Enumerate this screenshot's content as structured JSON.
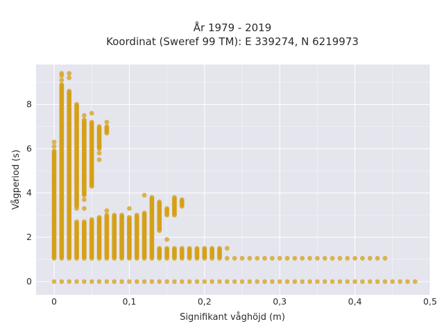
{
  "chart_data": {
    "type": "scatter",
    "title_line1": "År 1979 - 2019",
    "title_line2": "Koordinat (Sweref 99 TM): E 339274, N 6219973",
    "xlabel": "Signifikant våghöjd (m)",
    "ylabel": "Vågperiod (s)",
    "xlim": [
      -0.024,
      0.5
    ],
    "ylim": [
      -0.6,
      9.8
    ],
    "x_ticks": [
      0,
      0.1,
      0.2,
      0.3,
      0.4,
      0.5
    ],
    "x_tick_labels": [
      "0",
      "0,1",
      "0,2",
      "0,3",
      "0,4",
      "0,5"
    ],
    "y_ticks": [
      0,
      2,
      4,
      6,
      8
    ],
    "y_tick_labels": [
      "0",
      "2",
      "4",
      "6",
      "8"
    ],
    "grid": true,
    "colors": {
      "marker": "#d4a017",
      "plot_bg": "#e5e5ee",
      "grid": "#ffffff"
    },
    "columns": [
      {
        "x": 0.0,
        "ranges": [
          [
            1.05,
            5.9
          ]
        ],
        "extra": [
          6.1,
          6.3,
          0
        ]
      },
      {
        "x": 0.01,
        "ranges": [
          [
            1.05,
            8.9
          ]
        ],
        "extra": [
          9.1,
          9.3,
          9.4,
          0
        ]
      },
      {
        "x": 0.02,
        "ranges": [
          [
            1.05,
            8.6
          ]
        ],
        "extra": [
          9.2,
          9.4,
          0
        ]
      },
      {
        "x": 0.03,
        "ranges": [
          [
            1.05,
            2.7
          ],
          [
            3.4,
            8.0
          ]
        ],
        "extra": [
          3.3,
          0
        ]
      },
      {
        "x": 0.04,
        "ranges": [
          [
            1.05,
            2.7
          ],
          [
            3.9,
            7.3
          ]
        ],
        "extra": [
          3.3,
          3.7,
          7.5,
          0
        ]
      },
      {
        "x": 0.05,
        "ranges": [
          [
            1.05,
            2.8
          ],
          [
            4.3,
            7.2
          ]
        ],
        "extra": [
          7.6,
          0
        ]
      },
      {
        "x": 0.06,
        "ranges": [
          [
            1.05,
            2.9
          ],
          [
            6.0,
            7.0
          ]
        ],
        "extra": [
          5.5,
          5.8,
          0
        ]
      },
      {
        "x": 0.07,
        "ranges": [
          [
            1.05,
            3.0
          ],
          [
            6.7,
            7.0
          ]
        ],
        "extra": [
          3.2,
          7.2,
          0
        ]
      },
      {
        "x": 0.08,
        "ranges": [
          [
            1.05,
            3.0
          ]
        ],
        "extra": [
          0
        ]
      },
      {
        "x": 0.09,
        "ranges": [
          [
            1.05,
            3.0
          ]
        ],
        "extra": [
          0
        ]
      },
      {
        "x": 0.1,
        "ranges": [
          [
            1.05,
            2.9
          ]
        ],
        "extra": [
          3.3,
          0
        ]
      },
      {
        "x": 0.11,
        "ranges": [
          [
            1.05,
            3.0
          ]
        ],
        "extra": [
          0
        ]
      },
      {
        "x": 0.12,
        "ranges": [
          [
            1.05,
            3.1
          ]
        ],
        "extra": [
          3.9,
          0
        ]
      },
      {
        "x": 0.13,
        "ranges": [
          [
            1.05,
            3.8
          ]
        ],
        "extra": [
          0
        ]
      },
      {
        "x": 0.14,
        "ranges": [
          [
            1.05,
            1.5
          ],
          [
            2.3,
            3.6
          ]
        ],
        "extra": [
          0
        ]
      },
      {
        "x": 0.15,
        "ranges": [
          [
            1.05,
            1.5
          ],
          [
            3.0,
            3.3
          ]
        ],
        "extra": [
          1.9,
          0
        ]
      },
      {
        "x": 0.16,
        "ranges": [
          [
            1.05,
            1.5
          ],
          [
            3.0,
            3.8
          ]
        ],
        "extra": [
          0
        ]
      },
      {
        "x": 0.17,
        "ranges": [
          [
            1.05,
            1.5
          ],
          [
            3.4,
            3.7
          ]
        ],
        "extra": [
          0
        ]
      },
      {
        "x": 0.18,
        "ranges": [
          [
            1.05,
            1.5
          ]
        ],
        "extra": [
          0
        ]
      },
      {
        "x": 0.19,
        "ranges": [
          [
            1.05,
            1.5
          ]
        ],
        "extra": [
          0
        ]
      },
      {
        "x": 0.2,
        "ranges": [
          [
            1.05,
            1.5
          ]
        ],
        "extra": [
          0
        ]
      },
      {
        "x": 0.21,
        "ranges": [
          [
            1.05,
            1.5
          ]
        ],
        "extra": [
          0
        ]
      },
      {
        "x": 0.22,
        "ranges": [
          [
            1.05,
            1.5
          ]
        ],
        "extra": [
          0
        ]
      },
      {
        "x": 0.23,
        "ranges": [],
        "extra": [
          1.05,
          1.5,
          0
        ]
      },
      {
        "x": 0.24,
        "ranges": [],
        "extra": [
          1.05,
          0
        ]
      },
      {
        "x": 0.25,
        "ranges": [],
        "extra": [
          1.05,
          0
        ]
      },
      {
        "x": 0.26,
        "ranges": [],
        "extra": [
          1.05,
          0
        ]
      },
      {
        "x": 0.27,
        "ranges": [],
        "extra": [
          1.05,
          0
        ]
      },
      {
        "x": 0.28,
        "ranges": [],
        "extra": [
          1.05,
          0
        ]
      },
      {
        "x": 0.29,
        "ranges": [],
        "extra": [
          1.05,
          0
        ]
      },
      {
        "x": 0.3,
        "ranges": [],
        "extra": [
          1.05,
          0
        ]
      },
      {
        "x": 0.31,
        "ranges": [],
        "extra": [
          1.05,
          0
        ]
      },
      {
        "x": 0.32,
        "ranges": [],
        "extra": [
          1.05,
          0
        ]
      },
      {
        "x": 0.33,
        "ranges": [],
        "extra": [
          1.05,
          0
        ]
      },
      {
        "x": 0.34,
        "ranges": [],
        "extra": [
          1.05,
          0
        ]
      },
      {
        "x": 0.35,
        "ranges": [],
        "extra": [
          1.05,
          0
        ]
      },
      {
        "x": 0.36,
        "ranges": [],
        "extra": [
          1.05,
          0
        ]
      },
      {
        "x": 0.37,
        "ranges": [],
        "extra": [
          1.05,
          0
        ]
      },
      {
        "x": 0.38,
        "ranges": [],
        "extra": [
          1.05,
          0
        ]
      },
      {
        "x": 0.39,
        "ranges": [],
        "extra": [
          1.05,
          0
        ]
      },
      {
        "x": 0.4,
        "ranges": [],
        "extra": [
          1.05,
          0
        ]
      },
      {
        "x": 0.41,
        "ranges": [],
        "extra": [
          1.05,
          0
        ]
      },
      {
        "x": 0.42,
        "ranges": [],
        "extra": [
          1.05,
          0
        ]
      },
      {
        "x": 0.43,
        "ranges": [],
        "extra": [
          1.05,
          0
        ]
      },
      {
        "x": 0.44,
        "ranges": [],
        "extra": [
          1.05,
          0
        ]
      },
      {
        "x": 0.45,
        "ranges": [],
        "extra": [
          0
        ]
      },
      {
        "x": 0.46,
        "ranges": [],
        "extra": [
          0
        ]
      },
      {
        "x": 0.47,
        "ranges": [],
        "extra": [
          0
        ]
      },
      {
        "x": 0.48,
        "ranges": [],
        "extra": [
          0
        ]
      }
    ]
  }
}
